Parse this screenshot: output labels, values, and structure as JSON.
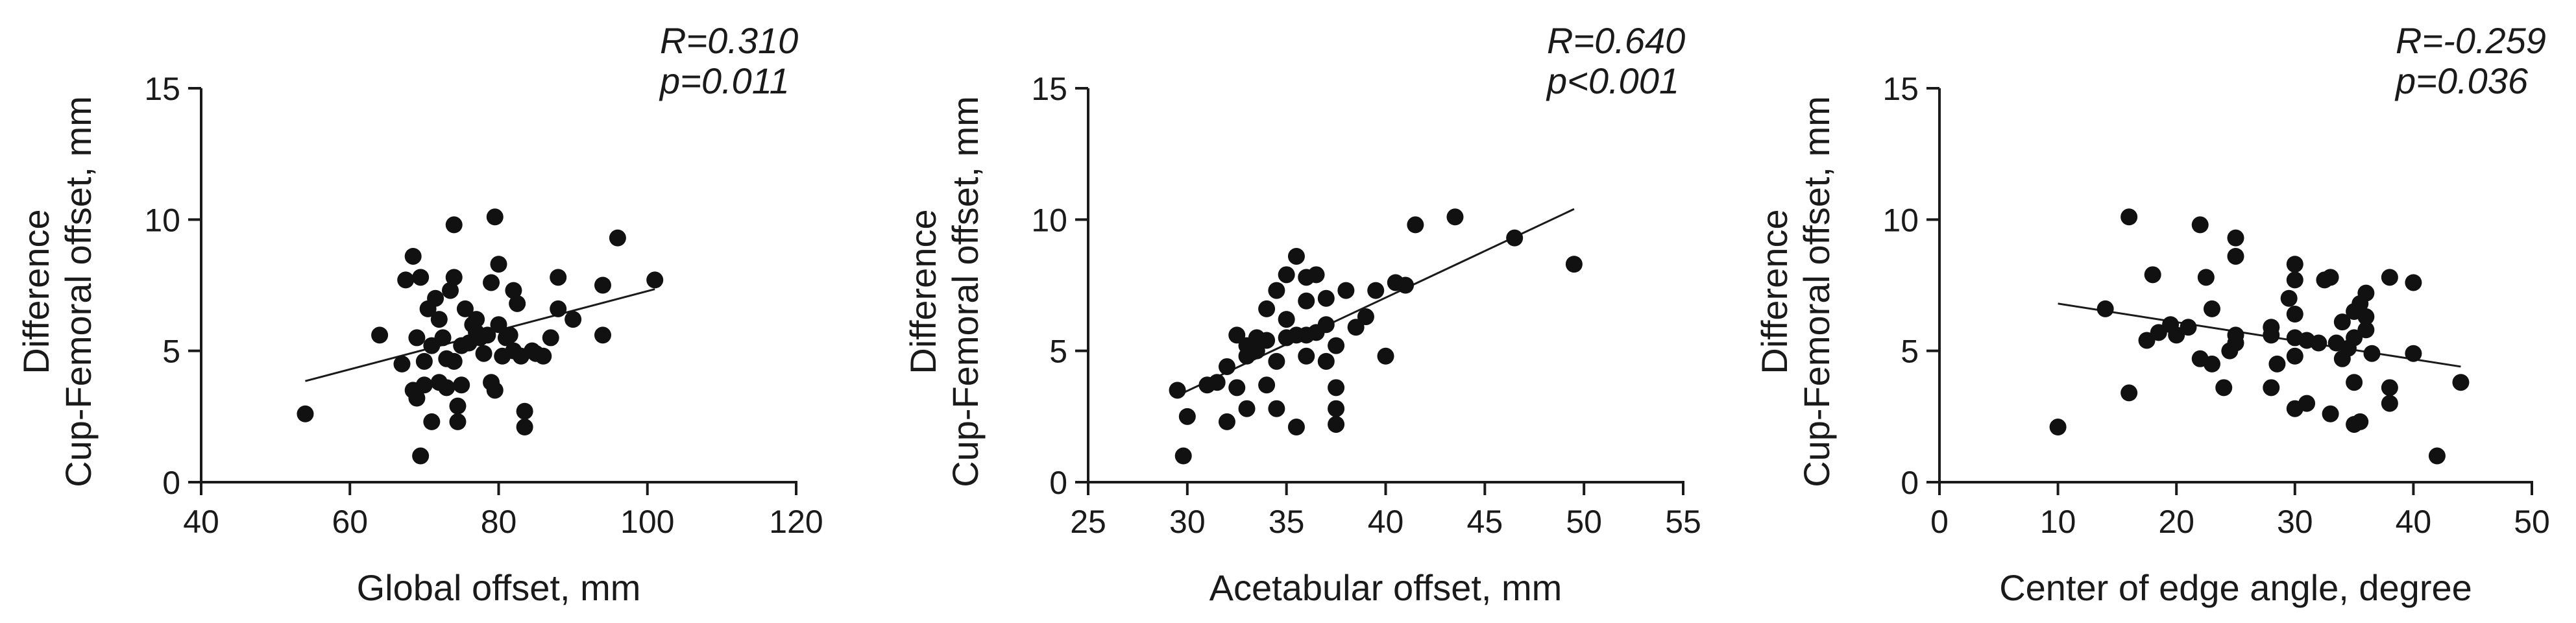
{
  "chart_data": [
    {
      "type": "scatter",
      "xlabel": "Global offset, mm",
      "ylabel": [
        "Difference",
        "Cup-Femoral offset, mm"
      ],
      "xlim": [
        40,
        120
      ],
      "ylim": [
        0,
        15
      ],
      "xticks": [
        40,
        60,
        80,
        100,
        120
      ],
      "yticks": [
        0,
        5,
        10,
        15
      ],
      "stats": [
        "R=0.310",
        "p=0.011"
      ],
      "fit": {
        "x": [
          54,
          101
        ],
        "y": [
          3.85,
          7.35
        ]
      },
      "points": [
        [
          54,
          2.6
        ],
        [
          64,
          5.6
        ],
        [
          67,
          4.5
        ],
        [
          67.5,
          7.7
        ],
        [
          68.5,
          8.6
        ],
        [
          68.5,
          3.5
        ],
        [
          69,
          5.5
        ],
        [
          69,
          3.2
        ],
        [
          69.5,
          1.0
        ],
        [
          69.5,
          7.8
        ],
        [
          70,
          4.6
        ],
        [
          70,
          3.7
        ],
        [
          70.5,
          6.6
        ],
        [
          71,
          2.3
        ],
        [
          71,
          5.2
        ],
        [
          71.5,
          7.0
        ],
        [
          72,
          3.8
        ],
        [
          72,
          6.2
        ],
        [
          72.5,
          5.5
        ],
        [
          73,
          4.7
        ],
        [
          73,
          3.6
        ],
        [
          73.5,
          7.3
        ],
        [
          74,
          7.8
        ],
        [
          74,
          9.8
        ],
        [
          74,
          4.6
        ],
        [
          74.5,
          2.9
        ],
        [
          74.5,
          2.3
        ],
        [
          75,
          5.2
        ],
        [
          75,
          3.7
        ],
        [
          75.5,
          6.6
        ],
        [
          76,
          5.3
        ],
        [
          76.5,
          6.0
        ],
        [
          77,
          5.7
        ],
        [
          77,
          6.2
        ],
        [
          77.5,
          5.5
        ],
        [
          78,
          4.9
        ],
        [
          78.5,
          5.6
        ],
        [
          79,
          3.8
        ],
        [
          79,
          7.6
        ],
        [
          79.5,
          10.1
        ],
        [
          79.5,
          3.5
        ],
        [
          80,
          8.3
        ],
        [
          80,
          6.0
        ],
        [
          80.5,
          4.8
        ],
        [
          81,
          5.5
        ],
        [
          81.5,
          5.6
        ],
        [
          82,
          5.0
        ],
        [
          82,
          7.3
        ],
        [
          82.5,
          6.8
        ],
        [
          83,
          4.8
        ],
        [
          83.5,
          2.7
        ],
        [
          83.5,
          2.1
        ],
        [
          84.5,
          5.0
        ],
        [
          85,
          4.9
        ],
        [
          86,
          4.8
        ],
        [
          87,
          5.5
        ],
        [
          88,
          6.6
        ],
        [
          88,
          7.8
        ],
        [
          90,
          6.2
        ],
        [
          94,
          5.6
        ],
        [
          94,
          7.5
        ],
        [
          96,
          9.3
        ],
        [
          101,
          7.7
        ]
      ]
    },
    {
      "type": "scatter",
      "xlabel": "Acetabular offset, mm",
      "ylabel": [
        "Difference",
        "Cup-Femoral offset, mm"
      ],
      "xlim": [
        25,
        55
      ],
      "ylim": [
        0,
        15
      ],
      "xticks": [
        25,
        30,
        35,
        40,
        45,
        50,
        55
      ],
      "yticks": [
        0,
        5,
        10,
        15
      ],
      "stats": [
        "R=0.640",
        "p<0.001"
      ],
      "fit": {
        "x": [
          29.5,
          49.5
        ],
        "y": [
          3.3,
          10.4
        ]
      },
      "points": [
        [
          29.5,
          3.5
        ],
        [
          29.8,
          1.0
        ],
        [
          30,
          2.5
        ],
        [
          31,
          3.7
        ],
        [
          31.5,
          3.8
        ],
        [
          32,
          4.4
        ],
        [
          32,
          2.3
        ],
        [
          32.5,
          5.6
        ],
        [
          32.5,
          3.6
        ],
        [
          33,
          5.2
        ],
        [
          33,
          4.8
        ],
        [
          33,
          2.8
        ],
        [
          33.5,
          5.0
        ],
        [
          33.5,
          5.5
        ],
        [
          34,
          6.6
        ],
        [
          34,
          5.4
        ],
        [
          34,
          3.7
        ],
        [
          34.5,
          7.3
        ],
        [
          34.5,
          4.6
        ],
        [
          34.5,
          2.8
        ],
        [
          35,
          7.9
        ],
        [
          35,
          5.5
        ],
        [
          35,
          6.2
        ],
        [
          35.5,
          8.6
        ],
        [
          35.5,
          5.6
        ],
        [
          35.5,
          2.1
        ],
        [
          36,
          7.8
        ],
        [
          36,
          6.9
        ],
        [
          36,
          5.6
        ],
        [
          36,
          4.8
        ],
        [
          36.5,
          7.9
        ],
        [
          36.5,
          5.7
        ],
        [
          37,
          7.0
        ],
        [
          37,
          6.0
        ],
        [
          37,
          4.6
        ],
        [
          37.5,
          3.6
        ],
        [
          37.5,
          2.8
        ],
        [
          37.5,
          2.2
        ],
        [
          37.5,
          5.2
        ],
        [
          38,
          7.3
        ],
        [
          38.5,
          5.9
        ],
        [
          39,
          6.3
        ],
        [
          39.5,
          7.3
        ],
        [
          40,
          4.8
        ],
        [
          40.5,
          7.6
        ],
        [
          41,
          7.5
        ],
        [
          41.5,
          9.8
        ],
        [
          43.5,
          10.1
        ],
        [
          46.5,
          9.3
        ],
        [
          49.5,
          8.3
        ]
      ]
    },
    {
      "type": "scatter",
      "xlabel": "Center of edge angle, degree",
      "ylabel": [
        "Difference",
        "Cup-Femoral offset, mm"
      ],
      "xlim": [
        0,
        50
      ],
      "ylim": [
        0,
        15
      ],
      "xticks": [
        0,
        10,
        20,
        30,
        40,
        50
      ],
      "yticks": [
        0,
        5,
        10,
        15
      ],
      "stats": [
        "R=-0.259",
        "p=0.036"
      ],
      "fit": {
        "x": [
          10,
          44
        ],
        "y": [
          6.8,
          4.4
        ]
      },
      "points": [
        [
          10,
          2.1
        ],
        [
          14,
          6.6
        ],
        [
          16,
          10.1
        ],
        [
          16,
          3.4
        ],
        [
          17.5,
          5.4
        ],
        [
          18,
          7.9
        ],
        [
          18.5,
          5.7
        ],
        [
          19.5,
          6.0
        ],
        [
          20,
          5.6
        ],
        [
          21,
          5.9
        ],
        [
          22,
          9.8
        ],
        [
          22,
          4.7
        ],
        [
          22.5,
          7.8
        ],
        [
          23,
          6.6
        ],
        [
          23,
          4.5
        ],
        [
          24,
          3.6
        ],
        [
          24.5,
          5.0
        ],
        [
          25,
          9.3
        ],
        [
          25,
          8.6
        ],
        [
          25,
          5.6
        ],
        [
          25,
          5.3
        ],
        [
          28,
          5.9
        ],
        [
          28,
          5.6
        ],
        [
          28,
          3.6
        ],
        [
          28.5,
          4.5
        ],
        [
          29.5,
          7.0
        ],
        [
          30,
          8.3
        ],
        [
          30,
          7.7
        ],
        [
          30,
          6.4
        ],
        [
          30,
          5.5
        ],
        [
          30,
          4.8
        ],
        [
          30,
          2.8
        ],
        [
          31,
          3.0
        ],
        [
          31,
          5.4
        ],
        [
          32,
          5.3
        ],
        [
          32.5,
          7.7
        ],
        [
          33,
          7.8
        ],
        [
          33,
          2.6
        ],
        [
          33.5,
          5.3
        ],
        [
          34,
          6.1
        ],
        [
          34,
          4.7
        ],
        [
          34.5,
          5.1
        ],
        [
          35,
          6.5
        ],
        [
          35,
          5.5
        ],
        [
          35,
          3.8
        ],
        [
          35,
          2.2
        ],
        [
          35.5,
          6.8
        ],
        [
          35.5,
          2.3
        ],
        [
          36,
          6.3
        ],
        [
          36,
          7.2
        ],
        [
          36,
          5.8
        ],
        [
          36.5,
          4.9
        ],
        [
          38,
          7.8
        ],
        [
          38,
          3.0
        ],
        [
          38,
          3.6
        ],
        [
          40,
          7.6
        ],
        [
          40,
          4.9
        ],
        [
          42,
          1.0
        ],
        [
          44,
          3.8
        ]
      ]
    }
  ]
}
